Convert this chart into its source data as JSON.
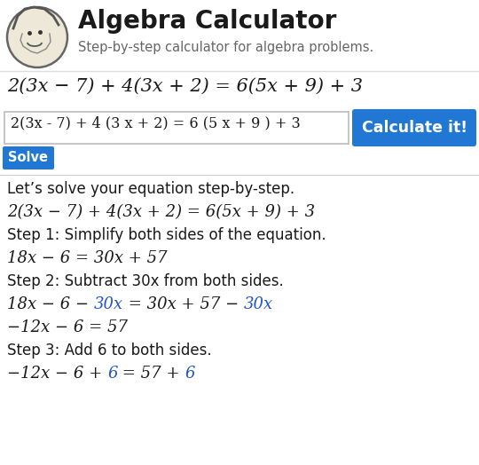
{
  "title": "Algebra Calculator",
  "subtitle": "Step-by-step calculator for algebra problems.",
  "bg_color": "#ffffff",
  "title_color": "#1a1a1a",
  "subtitle_color": "#666666",
  "black": "#1a1a1a",
  "blue": "#2255cc",
  "button_bg": "#2178d4",
  "button_text_color": "#ffffff",
  "solve_button_bg": "#2178d4",
  "input_bg": "#ffffff",
  "input_border": "#bbbbbb",
  "header_separator": "#dddddd",
  "body_separator": "#cccccc",
  "main_eq": "2(3x − 7) + 4(3x + 2) = 6(5x + 9) + 3",
  "input_text": "2(3x - 7) + 4 (3 x + 2) = 6 (5 x + 9 ) + 3",
  "calc_button": "Calculate it!",
  "solve_button": "Solve",
  "intro_text": "Let’s solve your equation step-by-step.",
  "eq_repeat": "2(3x − 7) + 4(3x + 2) = 6(5x + 9) + 3",
  "step1_label": "Step 1: Simplify both sides of the equation.",
  "step1_eq": "18x − 6 = 30x + 57",
  "step2_label": "Step 2: Subtract 30x from both sides.",
  "step2_eq_parts": [
    {
      "text": "18x − 6 − ",
      "color": "#1a1a1a"
    },
    {
      "text": "30x",
      "color": "#2255cc"
    },
    {
      "text": " = 30x + 57 − ",
      "color": "#1a1a1a"
    },
    {
      "text": "30x",
      "color": "#2255cc"
    }
  ],
  "step2_result": "−12x − 6 = 57",
  "step3_label": "Step 3: Add 6 to both sides.",
  "step3_eq_parts": [
    {
      "text": "−12x − 6 + ",
      "color": "#1a1a1a"
    },
    {
      "text": "6",
      "color": "#2255cc"
    },
    {
      "text": " = 57 + ",
      "color": "#1a1a1a"
    },
    {
      "text": "6",
      "color": "#2255cc"
    }
  ]
}
